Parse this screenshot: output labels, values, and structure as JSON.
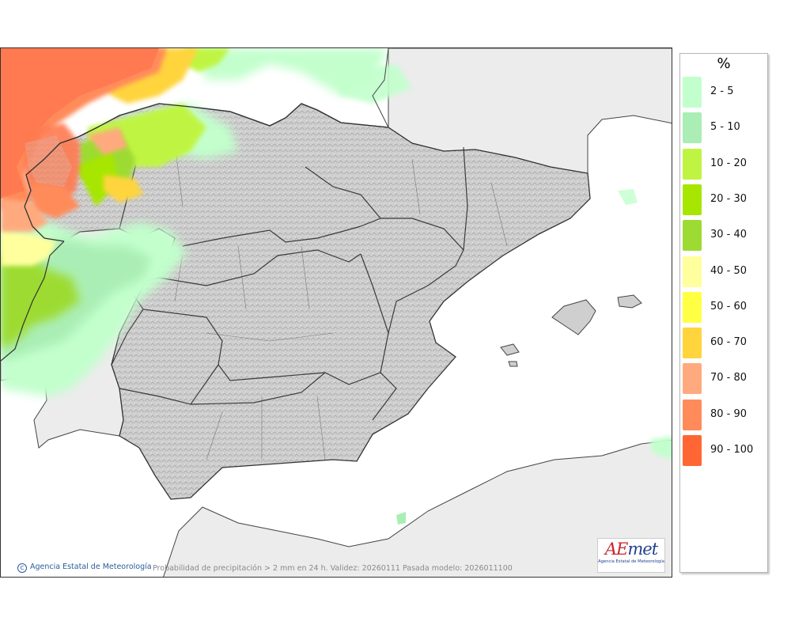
{
  "legend": {
    "unit": "%",
    "items": [
      {
        "label": "2 - 5",
        "color": "#c2ffcc"
      },
      {
        "label": "5 - 10",
        "color": "#aaeeb5"
      },
      {
        "label": "10 - 20",
        "color": "#bff542"
      },
      {
        "label": "20 - 30",
        "color": "#a6e600"
      },
      {
        "label": "30 - 40",
        "color": "#9ddb33"
      },
      {
        "label": "40 - 50",
        "color": "#ffff9e"
      },
      {
        "label": "50 - 60",
        "color": "#ffff44"
      },
      {
        "label": "60 - 70",
        "color": "#ffd43d"
      },
      {
        "label": "70 - 80",
        "color": "#ffaa7e"
      },
      {
        "label": "80 - 90",
        "color": "#ff8b5a"
      },
      {
        "label": "90 - 100",
        "color": "#ff6633"
      }
    ]
  },
  "credit": "Agencia Estatal de Meteorología",
  "caption": "Probabilidad de precipitación > 2 mm en 24 h. Validez: 20260111 Pasada modelo: 2026011100",
  "logo": {
    "word_a": "AE",
    "word_b": "met",
    "subtitle": "Agencia Estatal de Meteorología"
  }
}
